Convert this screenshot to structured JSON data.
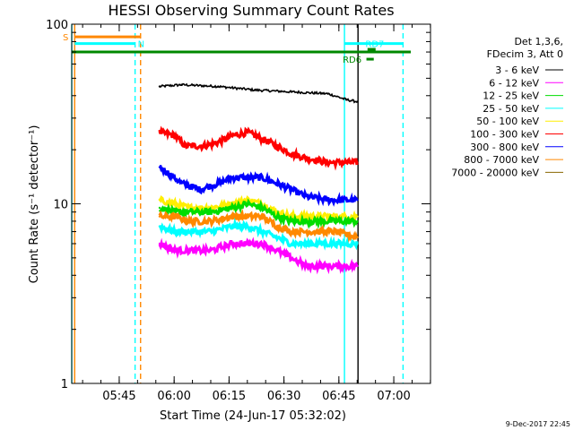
{
  "chart_data": {
    "type": "line",
    "title": "HESSI Observing Summary Count Rates",
    "xlabel": "Start Time (24-Jun-17 05:32:02)",
    "ylabel": "Count Rate (s⁻¹ detector⁻¹)",
    "yscale": "log",
    "ylim": [
      1,
      100
    ],
    "y_tick_labels": [
      "1",
      "10",
      "100"
    ],
    "x_range_minutes": [
      0,
      98
    ],
    "x_ticks": [
      {
        "label": "05:45",
        "minute": 12.97
      },
      {
        "label": "06:00",
        "minute": 27.97
      },
      {
        "label": "06:15",
        "minute": 42.97
      },
      {
        "label": "06:30",
        "minute": 57.97
      },
      {
        "label": "06:45",
        "minute": 72.97
      },
      {
        "label": "07:00",
        "minute": 87.97
      }
    ],
    "legend_header": [
      "Det 1,3,6,",
      "FDecim 3, Att 0"
    ],
    "legend": [
      {
        "label": "3 - 6 keV",
        "color": "#000000"
      },
      {
        "label": "6 - 12 keV",
        "color": "#ff00ff"
      },
      {
        "label": "12 - 25 keV",
        "color": "#00dd00"
      },
      {
        "label": "25 - 50 keV",
        "color": "#00ffff"
      },
      {
        "label": "50 - 100 keV",
        "color": "#ffee00"
      },
      {
        "label": "100 - 300 keV",
        "color": "#ff0000"
      },
      {
        "label": "300 - 800 keV",
        "color": "#0000ff"
      },
      {
        "label": "800 - 7000 keV",
        "color": "#ff8800"
      },
      {
        "label": "7000 - 20000 keV",
        "color": "#886600"
      }
    ],
    "series": [
      {
        "name": "3 - 6 keV",
        "color": "#000000",
        "x": [
          24,
          30,
          40,
          50,
          60,
          70,
          75,
          78
        ],
        "values": [
          45,
          46,
          45,
          43,
          42,
          41,
          38,
          37
        ]
      },
      {
        "name": "100 - 300 keV",
        "color": "#ff0000",
        "x": [
          24,
          28,
          31,
          36,
          40,
          44,
          48,
          52,
          56,
          60,
          64,
          70,
          78
        ],
        "values": [
          25,
          24,
          21,
          21,
          22,
          24,
          25,
          23,
          21,
          19,
          18,
          17,
          17
        ]
      },
      {
        "name": "300 - 800 keV",
        "color": "#0000ff",
        "x": [
          24,
          26,
          30,
          35,
          40,
          44,
          48,
          52,
          56,
          60,
          64,
          70,
          78
        ],
        "values": [
          16,
          15,
          13,
          12,
          13,
          14,
          14,
          14,
          13,
          12,
          11,
          10.5,
          10.5
        ]
      },
      {
        "name": "50 - 100 keV",
        "color": "#ffee00",
        "x": [
          24,
          28,
          32,
          38,
          44,
          48,
          52,
          56,
          60,
          66,
          72,
          78
        ],
        "values": [
          10.5,
          10,
          9.5,
          9.5,
          10,
          10.5,
          10,
          9,
          8.5,
          8.5,
          8.5,
          8.5
        ]
      },
      {
        "name": "12 - 25 keV",
        "color": "#00dd00",
        "x": [
          24,
          28,
          32,
          38,
          44,
          48,
          52,
          56,
          60,
          66,
          72,
          78
        ],
        "values": [
          9.5,
          9,
          9,
          9,
          9.5,
          10,
          9.5,
          8.5,
          8,
          8,
          8,
          8
        ]
      },
      {
        "name": "800 - 7000 keV",
        "color": "#ff8800",
        "x": [
          24,
          28,
          32,
          38,
          44,
          48,
          52,
          56,
          60,
          66,
          72,
          78
        ],
        "values": [
          8.5,
          8.5,
          8,
          8,
          8.5,
          8.5,
          8.5,
          7.5,
          7,
          7,
          7,
          6.5
        ]
      },
      {
        "name": "25 - 50 keV",
        "color": "#00ffff",
        "x": [
          24,
          28,
          32,
          38,
          44,
          48,
          52,
          56,
          60,
          66,
          72,
          78
        ],
        "values": [
          7.5,
          7,
          7,
          7,
          7.5,
          7.5,
          7,
          6.5,
          6,
          6,
          6,
          6
        ]
      },
      {
        "name": "6 - 12 keV",
        "color": "#ff00ff",
        "x": [
          24,
          28,
          32,
          38,
          44,
          48,
          52,
          56,
          60,
          64,
          70,
          78
        ],
        "values": [
          6,
          5.5,
          5.5,
          5.5,
          6,
          6,
          6,
          5.5,
          5,
          4.5,
          4.5,
          4.5
        ]
      }
    ],
    "flags": [
      {
        "label": "S",
        "color": "#ff8800",
        "y_value": 85,
        "x_start": 0.8,
        "x_end": 18.8
      },
      {
        "label": "N",
        "color": "#00ffff",
        "y_value": 78,
        "x_start": 0.8,
        "x_end": 17.3
      },
      {
        "label": "RD7",
        "color": "#00ffff",
        "y_value": 78,
        "x_start": 74.5,
        "x_end": 90.5
      },
      {
        "label": "RD6",
        "color": "#008800",
        "y_value": 70,
        "x_start": 0,
        "x_end": 98
      }
    ],
    "vertical_markers": [
      {
        "minute": 0.0,
        "color": "#00ffff",
        "style": "solid"
      },
      {
        "minute": 0.8,
        "color": "#ff8800",
        "style": "solid"
      },
      {
        "minute": 17.3,
        "color": "#00ffff",
        "style": "dashed"
      },
      {
        "minute": 18.8,
        "color": "#ff8800",
        "style": "dashed"
      },
      {
        "minute": 74.5,
        "color": "#00ffff",
        "style": "solid"
      },
      {
        "minute": 78.2,
        "color": "#000000",
        "style": "solid"
      },
      {
        "minute": 90.5,
        "color": "#00ffff",
        "style": "dashed"
      }
    ],
    "footer_date": "9-Dec-2017 22:45"
  }
}
